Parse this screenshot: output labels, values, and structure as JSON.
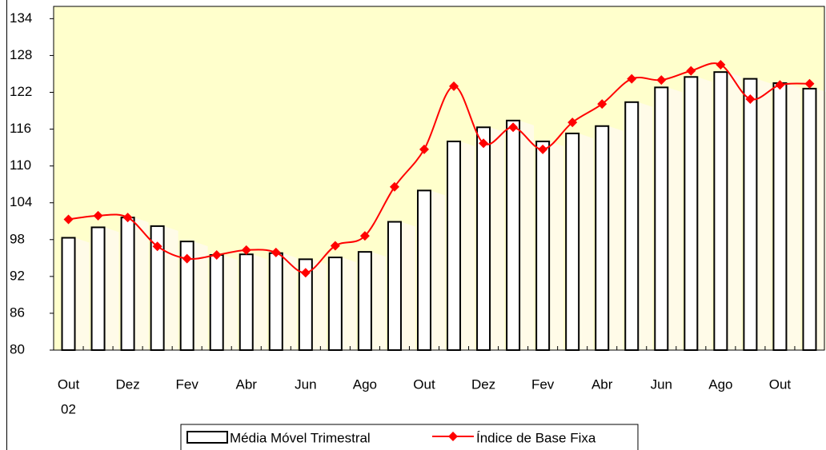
{
  "chart_data": {
    "type": "bar",
    "categories": [
      "Out",
      null,
      "Dez",
      null,
      "Fev",
      null,
      "Abr",
      null,
      "Jun",
      null,
      "Ago",
      null,
      "Out",
      null,
      "Dez",
      null,
      "Fev",
      null,
      "Abr",
      null,
      "Jun",
      null,
      "Ago",
      null,
      "Out",
      null
    ],
    "x_sublabels": [
      "02"
    ],
    "series": [
      {
        "name": "Média Móvel Trimestral",
        "type": "bar",
        "color": "#ffffff",
        "values": [
          98.3,
          100,
          101.6,
          100.2,
          97.7,
          95.5,
          95.6,
          95.8,
          94.8,
          95.1,
          96,
          100.9,
          106,
          114,
          116.3,
          117.4,
          114,
          115.3,
          116.5,
          120.4,
          122.8,
          124.5,
          125.3,
          124.2,
          123.5,
          122.6
        ]
      },
      {
        "name": "Índice de Base Fixa",
        "type": "line",
        "color": "#ff0000",
        "values": [
          101.3,
          101.9,
          101.6,
          96.9,
          94.9,
          95.5,
          96.3,
          95.9,
          92.6,
          97,
          98.6,
          106.6,
          112.7,
          123,
          113.7,
          116.3,
          112.7,
          117.1,
          120.1,
          124.2,
          124,
          125.5,
          126.5,
          120.9,
          123.2,
          123.4
        ]
      }
    ],
    "ylim": [
      80,
      136
    ],
    "yticks": [
      80,
      86,
      92,
      98,
      104,
      110,
      116,
      122,
      128,
      134
    ],
    "plot_background": "#ffffcc",
    "legend": "bottom"
  }
}
